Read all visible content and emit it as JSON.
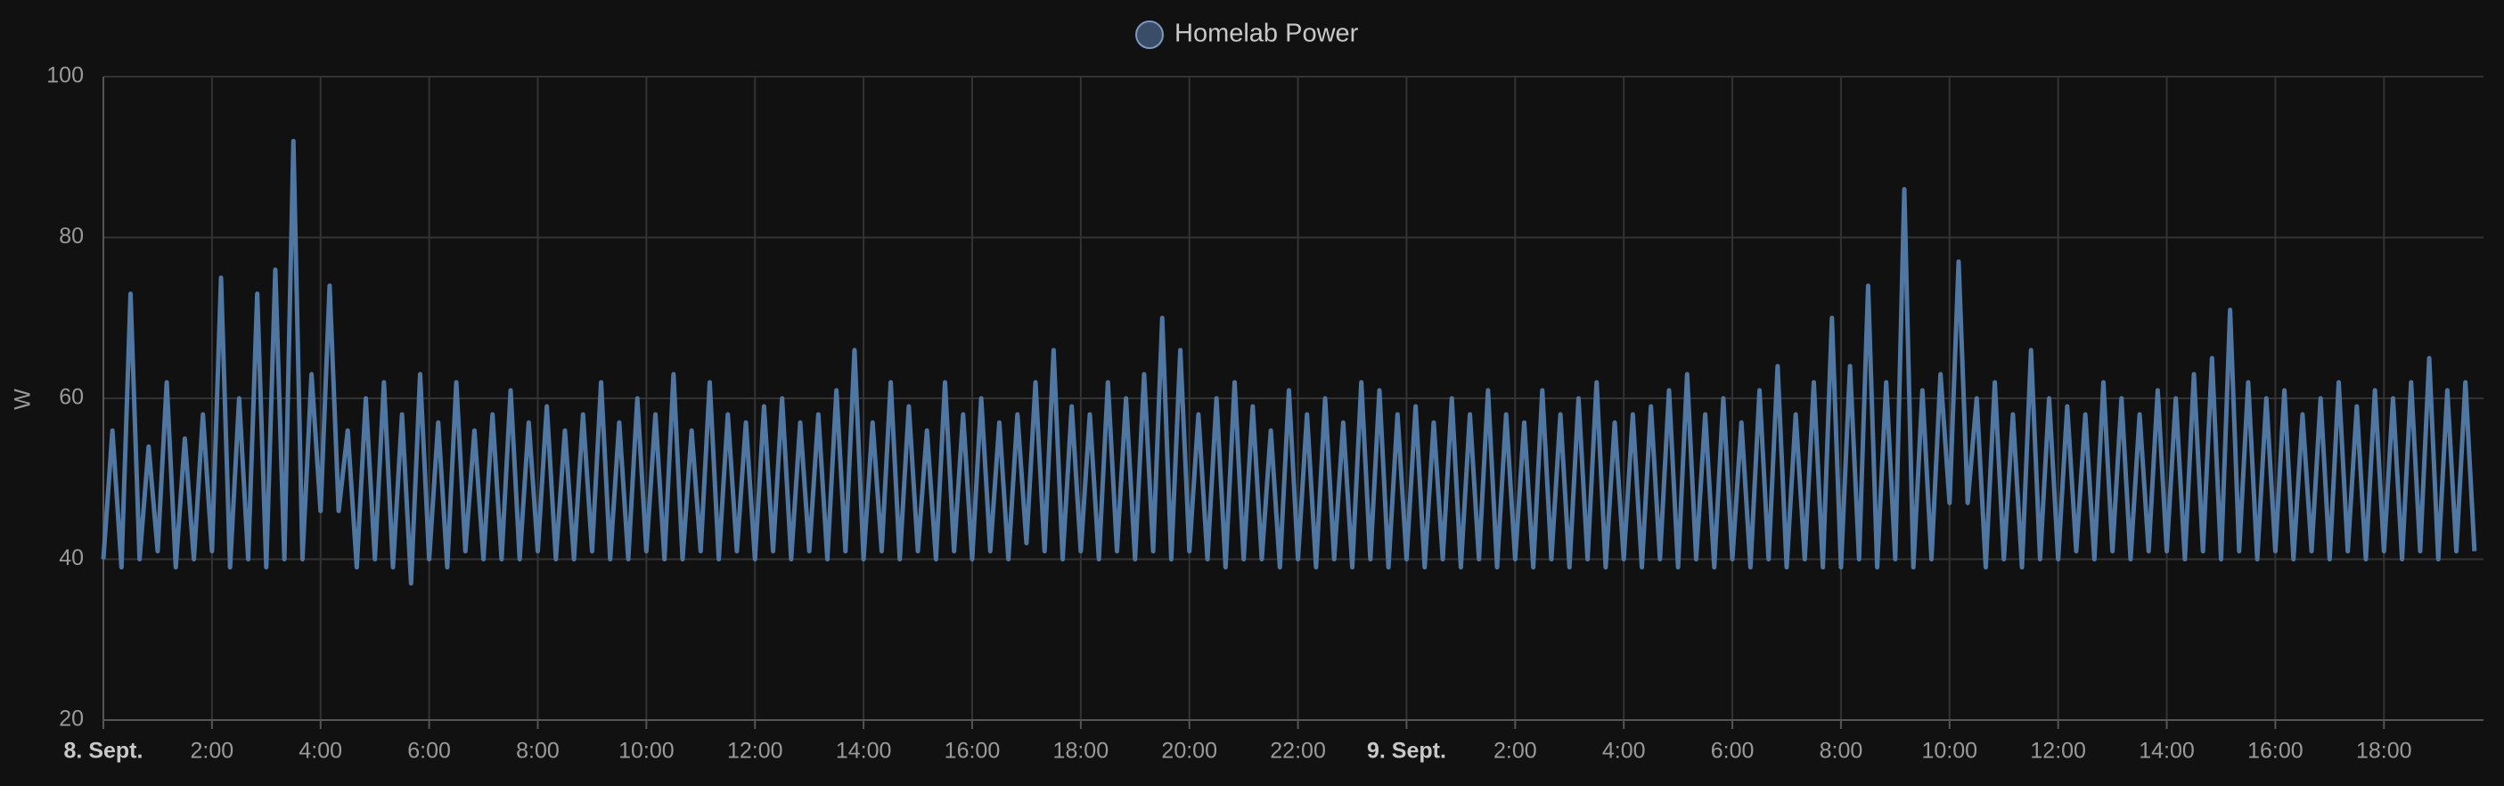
{
  "chart_data": {
    "type": "line",
    "ylabel": "W",
    "legend": "top",
    "grid": true,
    "ylim": [
      20,
      100
    ],
    "yticks": [
      20,
      40,
      60,
      80,
      100
    ],
    "xlim": [
      0,
      2630
    ],
    "xticks": [
      {
        "value": 0,
        "label": "8. Sept."
      },
      {
        "value": 120,
        "label": "2:00"
      },
      {
        "value": 240,
        "label": "4:00"
      },
      {
        "value": 360,
        "label": "6:00"
      },
      {
        "value": 480,
        "label": "8:00"
      },
      {
        "value": 600,
        "label": "10:00"
      },
      {
        "value": 720,
        "label": "12:00"
      },
      {
        "value": 840,
        "label": "14:00"
      },
      {
        "value": 960,
        "label": "16:00"
      },
      {
        "value": 1080,
        "label": "18:00"
      },
      {
        "value": 1200,
        "label": "20:00"
      },
      {
        "value": 1320,
        "label": "22:00"
      },
      {
        "value": 1440,
        "label": "9. Sept."
      },
      {
        "value": 1560,
        "label": "2:00"
      },
      {
        "value": 1680,
        "label": "4:00"
      },
      {
        "value": 1800,
        "label": "6:00"
      },
      {
        "value": 1920,
        "label": "8:00"
      },
      {
        "value": 2040,
        "label": "10:00"
      },
      {
        "value": 2160,
        "label": "12:00"
      },
      {
        "value": 2280,
        "label": "14:00"
      },
      {
        "value": 2400,
        "label": "16:00"
      },
      {
        "value": 2520,
        "label": "18:00"
      }
    ],
    "x": [
      0,
      10,
      20,
      30,
      40,
      50,
      60,
      70,
      80,
      90,
      100,
      110,
      120,
      130,
      140,
      150,
      160,
      170,
      180,
      190,
      200,
      210,
      220,
      230,
      240,
      250,
      260,
      270,
      280,
      290,
      300,
      310,
      320,
      330,
      340,
      350,
      360,
      370,
      380,
      390,
      400,
      410,
      420,
      430,
      440,
      450,
      460,
      470,
      480,
      490,
      500,
      510,
      520,
      530,
      540,
      550,
      560,
      570,
      580,
      590,
      600,
      610,
      620,
      630,
      640,
      650,
      660,
      670,
      680,
      690,
      700,
      710,
      720,
      730,
      740,
      750,
      760,
      770,
      780,
      790,
      800,
      810,
      820,
      830,
      840,
      850,
      860,
      870,
      880,
      890,
      900,
      910,
      920,
      930,
      940,
      950,
      960,
      970,
      980,
      990,
      1000,
      1010,
      1020,
      1030,
      1040,
      1050,
      1060,
      1070,
      1080,
      1090,
      1100,
      1110,
      1120,
      1130,
      1140,
      1150,
      1160,
      1170,
      1180,
      1190,
      1200,
      1210,
      1220,
      1230,
      1240,
      1250,
      1260,
      1270,
      1280,
      1290,
      1300,
      1310,
      1320,
      1330,
      1340,
      1350,
      1360,
      1370,
      1380,
      1390,
      1400,
      1410,
      1420,
      1430,
      1440,
      1450,
      1460,
      1470,
      1480,
      1490,
      1500,
      1510,
      1520,
      1530,
      1540,
      1550,
      1560,
      1570,
      1580,
      1590,
      1600,
      1610,
      1620,
      1630,
      1640,
      1650,
      1660,
      1670,
      1680,
      1690,
      1700,
      1710,
      1720,
      1730,
      1740,
      1750,
      1760,
      1770,
      1780,
      1790,
      1800,
      1810,
      1820,
      1830,
      1840,
      1850,
      1860,
      1870,
      1880,
      1890,
      1900,
      1910,
      1920,
      1930,
      1940,
      1950,
      1960,
      1970,
      1980,
      1990,
      2000,
      2010,
      2020,
      2030,
      2040,
      2050,
      2060,
      2070,
      2080,
      2090,
      2100,
      2110,
      2120,
      2130,
      2140,
      2150,
      2160,
      2170,
      2180,
      2190,
      2200,
      2210,
      2220,
      2230,
      2240,
      2250,
      2260,
      2270,
      2280,
      2290,
      2300,
      2310,
      2320,
      2330,
      2340,
      2350,
      2360,
      2370,
      2380,
      2390,
      2400,
      2410,
      2420,
      2430,
      2440,
      2450,
      2460,
      2470,
      2480,
      2490,
      2500,
      2510,
      2520,
      2530,
      2540,
      2550,
      2560,
      2570,
      2580,
      2590,
      2600,
      2610,
      2620
    ],
    "series": [
      {
        "name": "Homelab Power",
        "color": "#4f77a1",
        "values": [
          40,
          56,
          39,
          73,
          40,
          54,
          41,
          62,
          39,
          55,
          40,
          58,
          41,
          75,
          39,
          60,
          40,
          73,
          39,
          76,
          40,
          92,
          40,
          63,
          46,
          74,
          46,
          56,
          39,
          60,
          40,
          62,
          39,
          58,
          37,
          63,
          40,
          57,
          39,
          62,
          41,
          56,
          40,
          58,
          40,
          61,
          40,
          57,
          41,
          59,
          40,
          56,
          40,
          58,
          41,
          62,
          40,
          57,
          40,
          60,
          41,
          58,
          40,
          63,
          40,
          56,
          41,
          62,
          40,
          58,
          41,
          57,
          40,
          59,
          41,
          60,
          40,
          57,
          41,
          58,
          40,
          61,
          41,
          66,
          40,
          57,
          41,
          62,
          40,
          59,
          41,
          56,
          40,
          62,
          41,
          58,
          40,
          60,
          41,
          57,
          40,
          58,
          42,
          62,
          41,
          66,
          40,
          59,
          41,
          58,
          40,
          62,
          41,
          60,
          40,
          63,
          41,
          70,
          40,
          66,
          41,
          58,
          40,
          60,
          39,
          62,
          40,
          59,
          40,
          56,
          39,
          61,
          40,
          58,
          39,
          60,
          40,
          57,
          39,
          62,
          40,
          61,
          39,
          58,
          40,
          59,
          39,
          57,
          40,
          60,
          39,
          58,
          40,
          61,
          39,
          58,
          40,
          57,
          39,
          61,
          40,
          58,
          39,
          60,
          40,
          62,
          39,
          57,
          40,
          58,
          39,
          59,
          40,
          61,
          39,
          63,
          40,
          58,
          39,
          60,
          40,
          57,
          39,
          61,
          40,
          64,
          39,
          58,
          40,
          62,
          39,
          70,
          39,
          64,
          40,
          74,
          39,
          62,
          40,
          86,
          39,
          61,
          40,
          63,
          47,
          77,
          47,
          60,
          39,
          62,
          40,
          58,
          39,
          66,
          40,
          60,
          40,
          59,
          41,
          58,
          40,
          62,
          41,
          60,
          40,
          58,
          41,
          61,
          41,
          60,
          40,
          63,
          41,
          65,
          40,
          71,
          41,
          62,
          40,
          60,
          41,
          61,
          40,
          58,
          41,
          60,
          40,
          62,
          41,
          59,
          40,
          61,
          41,
          60,
          40,
          62,
          41,
          65,
          40,
          61,
          41,
          62,
          41
        ]
      }
    ]
  }
}
